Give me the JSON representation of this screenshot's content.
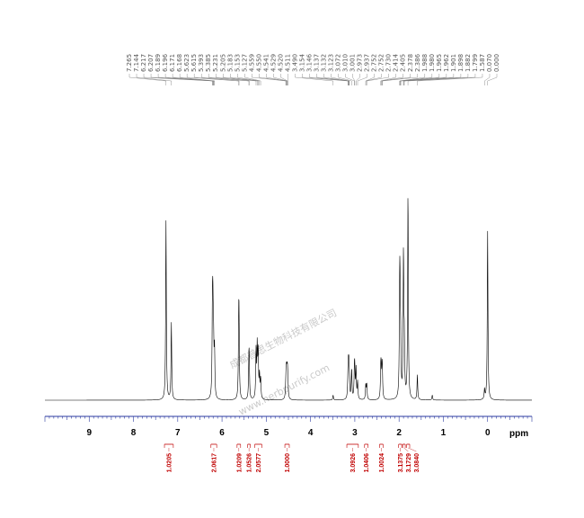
{
  "chart_data": {
    "type": "line",
    "xlabel": "ppm",
    "xlim": [
      10.0,
      -1.0
    ],
    "x_ticks": [
      9,
      8,
      7,
      6,
      5,
      4,
      3,
      2,
      1,
      0
    ],
    "peak_labels": [
      "7.265",
      "7.144",
      "6.217",
      "6.207",
      "6.189",
      "6.196",
      "6.171",
      "6.168",
      "5.623",
      "5.615",
      "5.393",
      "5.385",
      "5.231",
      "5.205",
      "5.183",
      "5.153",
      "5.127",
      "4.559",
      "4.550",
      "4.541",
      "4.529",
      "4.520",
      "4.511",
      "3.490",
      "3.154",
      "3.146",
      "3.137",
      "3.132",
      "3.123",
      "3.072",
      "3.010",
      "3.001",
      "2.973",
      "2.937",
      "2.752",
      "2.752",
      "2.730",
      "2.414",
      "2.405",
      "2.378",
      "2.386",
      "1.988",
      "1.980",
      "1.965",
      "1.962",
      "1.901",
      "1.898",
      "1.882",
      "1.799",
      "1.587",
      "0.070",
      "0.000"
    ],
    "peaks": [
      {
        "x": 7.265,
        "h": 0.72
      },
      {
        "x": 7.144,
        "h": 0.31
      },
      {
        "x": 6.217,
        "h": 0.29
      },
      {
        "x": 6.207,
        "h": 0.28
      },
      {
        "x": 6.196,
        "h": 0.12
      },
      {
        "x": 6.189,
        "h": 0.11
      },
      {
        "x": 6.171,
        "h": 0.1
      },
      {
        "x": 6.168,
        "h": 0.09
      },
      {
        "x": 5.623,
        "h": 0.25
      },
      {
        "x": 5.615,
        "h": 0.24
      },
      {
        "x": 5.393,
        "h": 0.13
      },
      {
        "x": 5.385,
        "h": 0.12
      },
      {
        "x": 5.231,
        "h": 0.19
      },
      {
        "x": 5.205,
        "h": 0.2
      },
      {
        "x": 5.183,
        "h": 0.18
      },
      {
        "x": 5.153,
        "h": 0.09
      },
      {
        "x": 5.127,
        "h": 0.08
      },
      {
        "x": 4.559,
        "h": 0.04
      },
      {
        "x": 4.55,
        "h": 0.07
      },
      {
        "x": 4.541,
        "h": 0.07
      },
      {
        "x": 4.529,
        "h": 0.07
      },
      {
        "x": 4.52,
        "h": 0.07
      },
      {
        "x": 4.511,
        "h": 0.04
      },
      {
        "x": 3.49,
        "h": 0.02
      },
      {
        "x": 3.154,
        "h": 0.07
      },
      {
        "x": 3.146,
        "h": 0.08
      },
      {
        "x": 3.137,
        "h": 0.07
      },
      {
        "x": 3.132,
        "h": 0.05
      },
      {
        "x": 3.123,
        "h": 0.05
      },
      {
        "x": 3.072,
        "h": 0.12
      },
      {
        "x": 3.01,
        "h": 0.09
      },
      {
        "x": 3.001,
        "h": 0.1
      },
      {
        "x": 2.973,
        "h": 0.12
      },
      {
        "x": 2.937,
        "h": 0.07
      },
      {
        "x": 2.752,
        "h": 0.06
      },
      {
        "x": 2.73,
        "h": 0.06
      },
      {
        "x": 2.414,
        "h": 0.1
      },
      {
        "x": 2.405,
        "h": 0.09
      },
      {
        "x": 2.386,
        "h": 0.09
      },
      {
        "x": 2.378,
        "h": 0.08
      },
      {
        "x": 1.988,
        "h": 0.3
      },
      {
        "x": 1.98,
        "h": 0.33
      },
      {
        "x": 1.965,
        "h": 0.2
      },
      {
        "x": 1.901,
        "h": 0.57
      },
      {
        "x": 1.882,
        "h": 0.2
      },
      {
        "x": 1.799,
        "h": 0.83
      },
      {
        "x": 1.587,
        "h": 0.1
      },
      {
        "x": 1.25,
        "h": 0.02
      },
      {
        "x": 0.07,
        "h": 0.04
      },
      {
        "x": 0.0,
        "h": 0.68
      }
    ],
    "integrals": [
      {
        "value": "1.0205",
        "from": 7.3,
        "to": 7.1
      },
      {
        "value": "2.0617",
        "from": 6.25,
        "to": 6.12
      },
      {
        "value": "1.0209",
        "from": 5.66,
        "to": 5.58
      },
      {
        "value": "1.0526",
        "from": 5.42,
        "to": 5.36
      },
      {
        "value": "2.0577",
        "from": 5.26,
        "to": 5.1
      },
      {
        "value": "1.0000",
        "from": 4.58,
        "to": 4.48
      },
      {
        "value": "3.0926",
        "from": 3.18,
        "to": 2.92
      },
      {
        "value": "1.0406",
        "from": 2.78,
        "to": 2.7
      },
      {
        "value": "1.0024",
        "from": 2.44,
        "to": 2.36
      },
      {
        "value": "3.1375",
        "from": 2.01,
        "to": 1.94
      },
      {
        "value": "3.1729",
        "from": 1.92,
        "to": 1.86
      },
      {
        "value": "3.0840",
        "from": 1.83,
        "to": 1.76
      }
    ],
    "watermark": [
      "成都普思生物科技有限公司",
      "www.herbpurify.com"
    ]
  }
}
